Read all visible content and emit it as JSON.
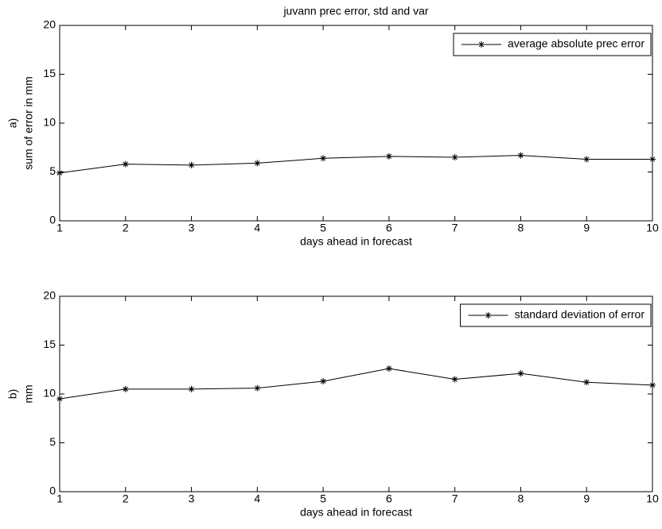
{
  "chart_data": [
    {
      "type": "line",
      "title": "juvann prec error, std and var",
      "panel_label": "a)",
      "ylabel": "sum of error in mm",
      "xlabel": "days ahead in forecast",
      "x": [
        1,
        2,
        3,
        4,
        5,
        6,
        7,
        8,
        9,
        10
      ],
      "series": [
        {
          "name": "average absolute prec error",
          "color": "#000000",
          "marker": "*",
          "values": [
            4.9,
            5.8,
            5.7,
            5.9,
            6.4,
            6.6,
            6.5,
            6.7,
            6.3,
            6.3
          ]
        }
      ],
      "xlim": [
        1,
        10
      ],
      "xticks": [
        1,
        2,
        3,
        4,
        5,
        6,
        7,
        8,
        9,
        10
      ],
      "ylim": [
        0,
        20
      ],
      "yticks": [
        0,
        5,
        10,
        15,
        20
      ],
      "grid": false,
      "legend": "upper right"
    },
    {
      "type": "line",
      "panel_label": "b)",
      "ylabel": "mm",
      "xlabel": "days ahead in forecast",
      "x": [
        1,
        2,
        3,
        4,
        5,
        6,
        7,
        8,
        9,
        10
      ],
      "series": [
        {
          "name": "standard deviation of error",
          "color": "#000000",
          "marker": "*",
          "values": [
            9.5,
            10.5,
            10.5,
            10.6,
            11.3,
            12.6,
            11.5,
            12.1,
            11.2,
            10.9
          ]
        }
      ],
      "xlim": [
        1,
        10
      ],
      "xticks": [
        1,
        2,
        3,
        4,
        5,
        6,
        7,
        8,
        9,
        10
      ],
      "ylim": [
        0,
        20
      ],
      "yticks": [
        0,
        5,
        10,
        15,
        20
      ],
      "grid": false,
      "legend": "upper right"
    }
  ]
}
